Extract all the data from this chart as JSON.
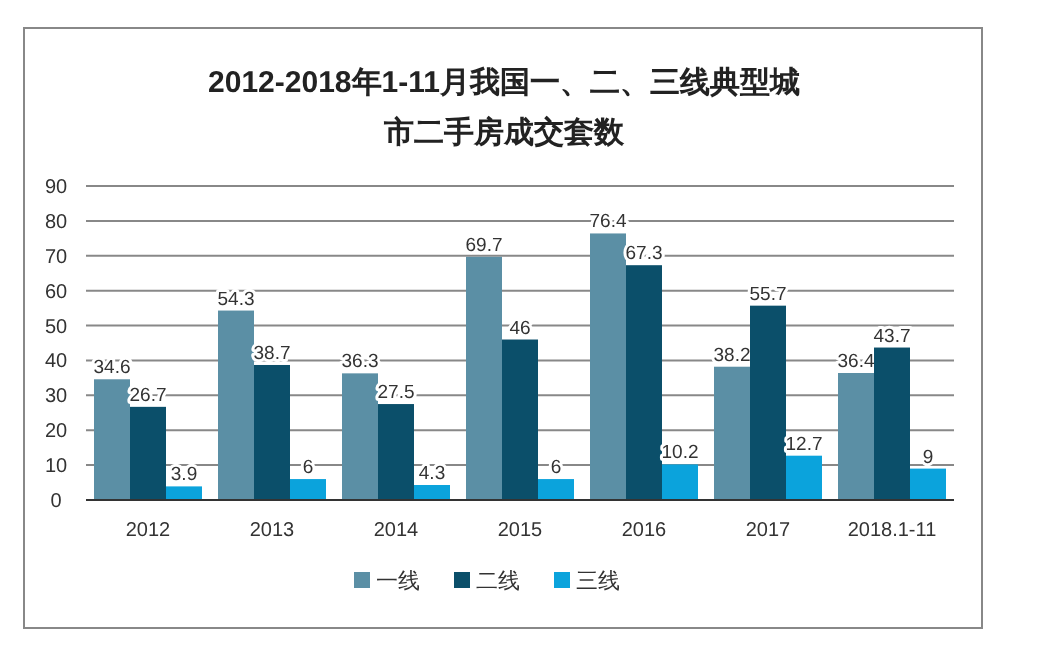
{
  "chart_data": {
    "type": "bar",
    "title": "2012-2018年1-11月我国一、二、三线典型城市二手房成交套数",
    "categories": [
      "2012",
      "2013",
      "2014",
      "2015",
      "2016",
      "2017",
      "2018.1-11"
    ],
    "series": [
      {
        "name": "一线",
        "color": "#5b8fa5",
        "values": [
          34.6,
          54.3,
          36.3,
          69.7,
          76.4,
          38.2,
          36.4
        ]
      },
      {
        "name": "二线",
        "color": "#0b4f6a",
        "values": [
          26.7,
          38.7,
          27.5,
          46,
          67.3,
          55.7,
          43.7
        ]
      },
      {
        "name": "三线",
        "color": "#0ba3dc",
        "values": [
          3.9,
          6,
          4.3,
          6,
          10.2,
          12.7,
          9
        ]
      }
    ],
    "ylim": [
      0,
      90
    ],
    "yticks": [
      0,
      10,
      20,
      30,
      40,
      50,
      60,
      70,
      80,
      90
    ],
    "grid": "y",
    "legend": "bottom",
    "data_labels": true
  }
}
